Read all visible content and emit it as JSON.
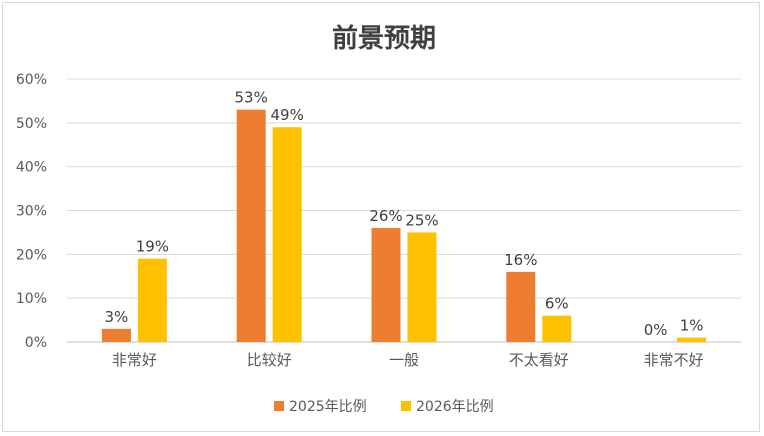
{
  "chart_data": {
    "type": "bar",
    "title": "前景预期",
    "categories": [
      "非常好",
      "比较好",
      "一般",
      "不太看好",
      "非常不好"
    ],
    "series": [
      {
        "name": "2025年比例",
        "color": "#ED7D31",
        "values": [
          3,
          53,
          26,
          16,
          0
        ],
        "labels": [
          "3%",
          "53%",
          "26%",
          "16%",
          "0%"
        ]
      },
      {
        "name": "2026年比例",
        "color": "#FFC000",
        "values": [
          19,
          49,
          25,
          6,
          1
        ],
        "labels": [
          "19%",
          "49%",
          "25%",
          "6%",
          "1%"
        ]
      }
    ],
    "y_ticks": [
      "0%",
      "10%",
      "20%",
      "30%",
      "40%",
      "50%",
      "60%"
    ],
    "ylim": [
      0,
      60
    ],
    "grid": true,
    "legend": "bottom",
    "xlabel": "",
    "ylabel": ""
  }
}
